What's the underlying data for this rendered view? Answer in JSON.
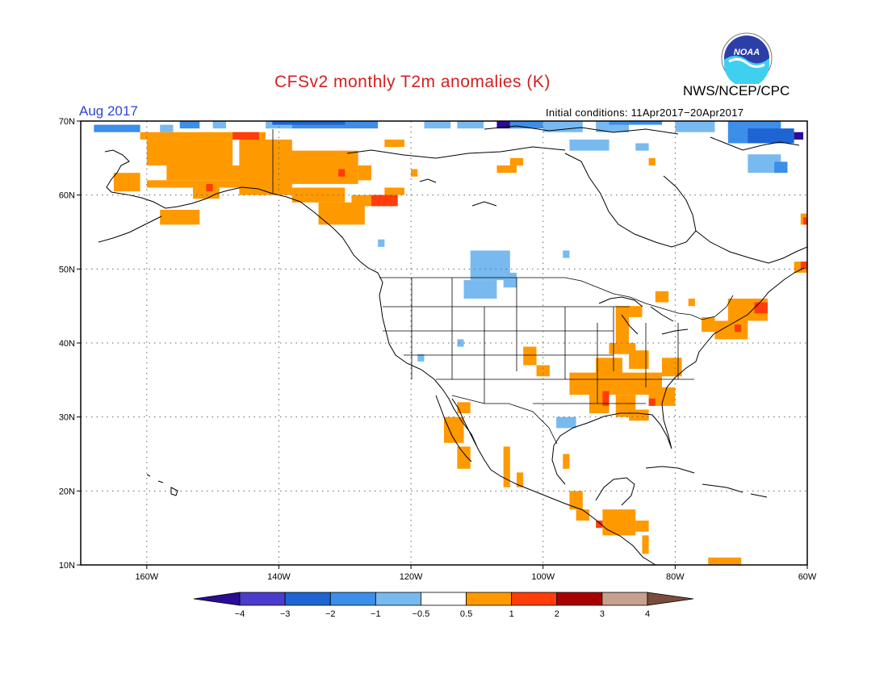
{
  "title": "CFSv2 monthly T2m anomalies (K)",
  "month_label": "Aug 2017",
  "agency": "NWS/NCEP/CPC",
  "initial_conditions": "Initial conditions: 11Apr2017−20Apr2017",
  "logo_text": "NOAA",
  "map": {
    "projection": "cylindrical",
    "lon_range": [
      -170,
      -60
    ],
    "lat_range": [
      10,
      70
    ],
    "lat_ticks": [
      {
        "v": 70,
        "label": "70N"
      },
      {
        "v": 60,
        "label": "60N"
      },
      {
        "v": 50,
        "label": "50N"
      },
      {
        "v": 40,
        "label": "40N"
      },
      {
        "v": 30,
        "label": "30N"
      },
      {
        "v": 20,
        "label": "20N"
      },
      {
        "v": 10,
        "label": "10N"
      }
    ],
    "lon_ticks": [
      {
        "v": -160,
        "label": "160W"
      },
      {
        "v": -140,
        "label": "140W"
      },
      {
        "v": -120,
        "label": "120W"
      },
      {
        "v": -100,
        "label": "100W"
      },
      {
        "v": -80,
        "label": "80W"
      },
      {
        "v": -60,
        "label": "60W"
      }
    ],
    "grid": "dotted"
  },
  "colorbar": {
    "labels": [
      "−4",
      "−3",
      "−2",
      "−1",
      "−0.5",
      "0.5",
      "1",
      "2",
      "3",
      "4"
    ],
    "colors": [
      "#2a0c96",
      "#4a3ccc",
      "#1e64d2",
      "#3c8ee8",
      "#78baf0",
      "#ffffff",
      "#ff9900",
      "#ff3c0a",
      "#a80000",
      "#c8a090",
      "#7a4c3c"
    ],
    "low_extend": true,
    "high_extend": true
  },
  "anomaly_cells": [
    {
      "c": "#ff9900",
      "r": [
        [
          -161,
          -142,
          67.5,
          68.5
        ],
        [
          -160,
          -147,
          64,
          67.5
        ],
        [
          -157,
          -142,
          62,
          64
        ],
        [
          -160,
          -143,
          61,
          62
        ],
        [
          -153,
          -149,
          59.5,
          61
        ],
        [
          -146,
          -138,
          60,
          67.5
        ],
        [
          -142,
          -128,
          61.5,
          66
        ],
        [
          -128,
          -126,
          62,
          64
        ],
        [
          -138,
          -130,
          59,
          61
        ],
        [
          -134,
          -127,
          56,
          59
        ],
        [
          -129,
          -123,
          58.5,
          60
        ],
        [
          -124,
          -121,
          60,
          61
        ],
        [
          -165,
          -161,
          60.5,
          63
        ],
        [
          -158,
          -152,
          56,
          58
        ],
        [
          -124,
          -121,
          66.5,
          67.5
        ],
        [
          -120,
          -119,
          62.5,
          63.5
        ],
        [
          -107,
          -104,
          63,
          64
        ],
        [
          -105,
          -103,
          64,
          65
        ],
        [
          -84,
          -83,
          64,
          65
        ],
        [
          -61,
          -60,
          56,
          57.5
        ],
        [
          -83,
          -81,
          45.5,
          47
        ],
        [
          -78,
          -77,
          45,
          46
        ],
        [
          -72,
          -66,
          43,
          46
        ],
        [
          -74,
          -69,
          40.5,
          43
        ],
        [
          -89,
          -87,
          40,
          45
        ],
        [
          -90,
          -86,
          38.5,
          40
        ],
        [
          -87,
          -84,
          36.5,
          39
        ],
        [
          -92,
          -88,
          34,
          38
        ],
        [
          -96,
          -82,
          33,
          36
        ],
        [
          -93,
          -90,
          30.5,
          34
        ],
        [
          -89,
          -86,
          30,
          33
        ],
        [
          -84,
          -80,
          31.5,
          34
        ],
        [
          -87,
          -84,
          29.5,
          31
        ],
        [
          -103,
          -101,
          37,
          39.5
        ],
        [
          -101,
          -99,
          35.5,
          37
        ],
        [
          -113,
          -111,
          30.5,
          32
        ],
        [
          -115,
          -112,
          26.5,
          30
        ],
        [
          -113,
          -111,
          23,
          26
        ],
        [
          -106,
          -105,
          20.5,
          26
        ],
        [
          -104,
          -103,
          20.5,
          22.5
        ],
        [
          -97,
          -96,
          23,
          25
        ],
        [
          -96,
          -94,
          17.5,
          20
        ],
        [
          -95,
          -93,
          16,
          17.5
        ],
        [
          -91,
          -86,
          14,
          17.5
        ],
        [
          -86,
          -84,
          14.5,
          16
        ],
        [
          -85,
          -84,
          11.5,
          14
        ],
        [
          -75,
          -70,
          10,
          11
        ],
        [
          -62,
          -60,
          49.5,
          51
        ],
        [
          -87,
          -85,
          43.5,
          45
        ],
        [
          -76,
          -74,
          41.5,
          43.5
        ],
        [
          -82,
          -79,
          35.5,
          38
        ]
      ]
    },
    {
      "c": "#ff3c0a",
      "r": [
        [
          -147,
          -143,
          67.5,
          68.5
        ],
        [
          -126,
          -122,
          58.5,
          60
        ],
        [
          -131,
          -130,
          62.5,
          63.5
        ],
        [
          -151,
          -150,
          60.5,
          61.5
        ],
        [
          -60.6,
          -60,
          56,
          57
        ],
        [
          -61,
          -60,
          50,
          51
        ],
        [
          -91,
          -90,
          31.5,
          33.5
        ],
        [
          -84,
          -83,
          31.5,
          32.5
        ],
        [
          -92,
          -91,
          15,
          16
        ],
        [
          -68,
          -66,
          44,
          45.5
        ],
        [
          -71,
          -70,
          41.5,
          42.5
        ]
      ]
    },
    {
      "c": "#78baf0",
      "r": [
        [
          -111,
          -105,
          48.5,
          52.5
        ],
        [
          -112,
          -107,
          46,
          48.5
        ],
        [
          -106,
          -104,
          47.5,
          49.5
        ],
        [
          -98,
          -95,
          28.5,
          30
        ],
        [
          -119,
          -118,
          37.5,
          38.5
        ],
        [
          -113,
          -112,
          39.5,
          40.5
        ],
        [
          -97,
          -96,
          51.5,
          52.5
        ],
        [
          -158,
          -156,
          68.5,
          69.5
        ],
        [
          -142,
          -138,
          69,
          70
        ],
        [
          -118,
          -114,
          69,
          70
        ],
        [
          -113,
          -109,
          69,
          70
        ],
        [
          -100,
          -94,
          68.5,
          70
        ],
        [
          -92,
          -87,
          68.5,
          70
        ],
        [
          -80,
          -74,
          68.5,
          70
        ],
        [
          -67,
          -64,
          67.5,
          69.5
        ],
        [
          -69,
          -64,
          63,
          65.5
        ],
        [
          -86,
          -84,
          66,
          67
        ],
        [
          -150,
          -148,
          69,
          70
        ],
        [
          -96,
          -90,
          66,
          67.5
        ],
        [
          -125,
          -124,
          53,
          54
        ]
      ]
    },
    {
      "c": "#3c8ee8",
      "r": [
        [
          -168,
          -161,
          68.5,
          69.5
        ],
        [
          -138,
          -125,
          69,
          70
        ],
        [
          -105,
          -100,
          69,
          70
        ],
        [
          -72,
          -64,
          67,
          70
        ],
        [
          -65,
          -63,
          63,
          64.5
        ],
        [
          -155,
          -152,
          69,
          70
        ],
        [
          -90,
          -82,
          69.5,
          70
        ]
      ]
    },
    {
      "c": "#1e64d2",
      "r": [
        [
          -141,
          -130,
          69.5,
          70
        ],
        [
          -69,
          -62,
          67,
          69
        ]
      ]
    },
    {
      "c": "#2a0c96",
      "r": [
        [
          -107,
          -105,
          69,
          70
        ],
        [
          -62,
          -60.6,
          67.5,
          68.5
        ]
      ]
    }
  ]
}
